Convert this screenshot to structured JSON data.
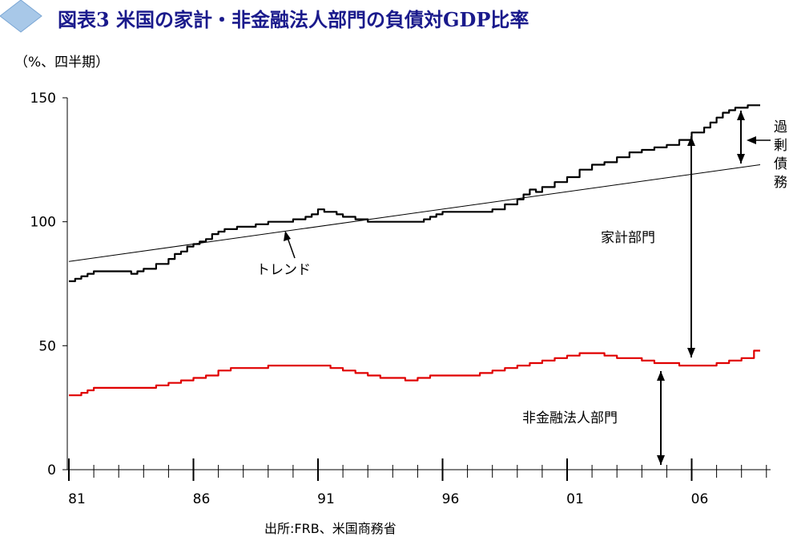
{
  "title": "図表3 米国の家計・非金融法人部門の負債対GDP比率",
  "unit": "（%、四半期）",
  "source": "出所:FRB、米国商務省",
  "colors": {
    "household": "#000000",
    "nonfinancial": "#e00000",
    "trend": "#000000",
    "title": "#1a1a8c",
    "diamond": "#a8c8e8"
  },
  "icons": {
    "title_marker": "diamond-icon"
  },
  "annotations": {
    "trend": "トレンド",
    "household": "家計部門",
    "nonfinancial": "非金融法人部門",
    "excess": [
      "過",
      "剰",
      "債",
      "務"
    ]
  },
  "chart_data": {
    "type": "line",
    "title": "図表3 米国の家計・非金融法人部門の負債対GDP比率",
    "xlabel": "",
    "ylabel": "（%、四半期）",
    "ylim": [
      0,
      150
    ],
    "yticks": [
      0,
      50,
      100,
      150
    ],
    "xticks": [
      {
        "label": "81",
        "x": 1981
      },
      {
        "label": "86",
        "x": 1986
      },
      {
        "label": "91",
        "x": 1991
      },
      {
        "label": "96",
        "x": 1996
      },
      {
        "label": "01",
        "x": 2001
      },
      {
        "label": "06",
        "x": 2006
      }
    ],
    "xlim": [
      1981,
      2009
    ],
    "grid": false,
    "series": [
      {
        "name": "家計部門",
        "x": [
          1981,
          1981.25,
          1981.5,
          1981.75,
          1982,
          1982.5,
          1983,
          1983.5,
          1983.75,
          1984,
          1984.5,
          1985,
          1985.25,
          1985.5,
          1985.75,
          1986,
          1986.25,
          1986.5,
          1986.75,
          1987,
          1987.25,
          1987.5,
          1987.75,
          1988,
          1988.5,
          1989,
          1989.5,
          1990,
          1990.5,
          1990.75,
          1991,
          1991.25,
          1991.5,
          1991.75,
          1992,
          1992.5,
          1993,
          1993.5,
          1994,
          1994.5,
          1995,
          1995.25,
          1995.5,
          1995.75,
          1996,
          1996.5,
          1997,
          1997.5,
          1998,
          1998.5,
          1999,
          1999.25,
          1999.5,
          1999.75,
          2000,
          2000.5,
          2001,
          2001.5,
          2002,
          2002.5,
          2003,
          2003.5,
          2004,
          2004.5,
          2005,
          2005.5,
          2006,
          2006.5,
          2006.75,
          2007,
          2007.25,
          2007.5,
          2007.75,
          2008,
          2008.25,
          2008.5,
          2008.75
        ],
        "values": [
          76,
          77,
          78,
          79,
          80,
          80,
          80,
          79,
          80,
          81,
          83,
          85,
          87,
          88,
          90,
          91,
          92,
          93,
          95,
          96,
          97,
          97,
          98,
          98,
          99,
          100,
          100,
          101,
          102,
          103,
          105,
          104,
          104,
          103,
          102,
          101,
          100,
          100,
          100,
          100,
          100,
          101,
          102,
          103,
          104,
          104,
          104,
          104,
          105,
          107,
          109,
          111,
          113,
          112,
          114,
          116,
          118,
          121,
          123,
          124,
          126,
          128,
          129,
          130,
          131,
          133,
          136,
          138,
          140,
          142,
          144,
          145,
          146,
          146,
          147,
          147,
          147
        ]
      },
      {
        "name": "非金融法人部門",
        "x": [
          1981,
          1981.25,
          1981.5,
          1981.75,
          1982,
          1983,
          1984,
          1984.5,
          1985,
          1985.5,
          1986,
          1986.5,
          1987,
          1987.5,
          1988,
          1989,
          1990,
          1991,
          1991.5,
          1992,
          1992.5,
          1993,
          1993.5,
          1994,
          1994.5,
          1995,
          1995.5,
          1996,
          1996.5,
          1997,
          1997.5,
          1998,
          1998.5,
          1999,
          1999.5,
          2000,
          2000.5,
          2001,
          2001.5,
          2002,
          2002.5,
          2003,
          2003.5,
          2004,
          2004.5,
          2005,
          2005.5,
          2006,
          2006.5,
          2007,
          2007.5,
          2008,
          2008.5,
          2008.75
        ],
        "values": [
          30,
          30,
          31,
          32,
          33,
          33,
          33,
          34,
          35,
          36,
          37,
          38,
          40,
          41,
          41,
          42,
          42,
          42,
          41,
          40,
          39,
          38,
          37,
          37,
          36,
          37,
          38,
          38,
          38,
          38,
          39,
          40,
          41,
          42,
          43,
          44,
          45,
          46,
          47,
          47,
          46,
          45,
          45,
          44,
          43,
          43,
          42,
          42,
          42,
          43,
          44,
          45,
          48,
          48
        ]
      },
      {
        "name": "トレンド",
        "x": [
          1981,
          2008.75
        ],
        "values": [
          84,
          123
        ]
      }
    ]
  }
}
